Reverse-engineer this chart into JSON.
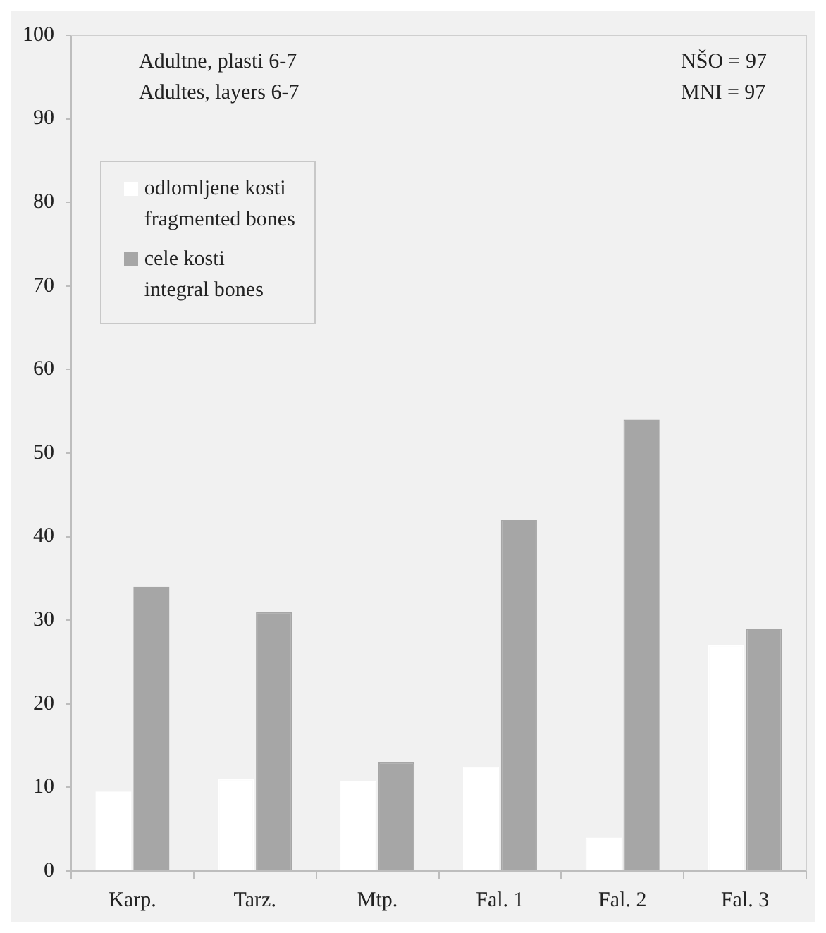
{
  "chart_data": {
    "type": "bar",
    "categories": [
      "Karp.",
      "Tarz.",
      "Mtp.",
      "Fal. 1",
      "Fal. 2",
      "Fal. 3"
    ],
    "series": [
      {
        "name": "odlomljene kosti\nfragmented bones",
        "color": "#ffffff",
        "values": [
          9.5,
          11,
          10.8,
          12.5,
          4,
          27
        ]
      },
      {
        "name": "cele kosti\nintegral bones",
        "color": "#a6a6a6",
        "values": [
          34,
          31,
          13,
          42,
          54,
          29
        ]
      }
    ],
    "ylim": [
      0,
      100
    ],
    "yticks": [
      0,
      10,
      20,
      30,
      40,
      50,
      60,
      70,
      80,
      90,
      100
    ],
    "grid": false,
    "legend": "top left",
    "annotations": [
      "Adultne, plasti 6-7\nAdultes, layers 6-7",
      "NŠO = 97\nMNI = 97"
    ]
  }
}
